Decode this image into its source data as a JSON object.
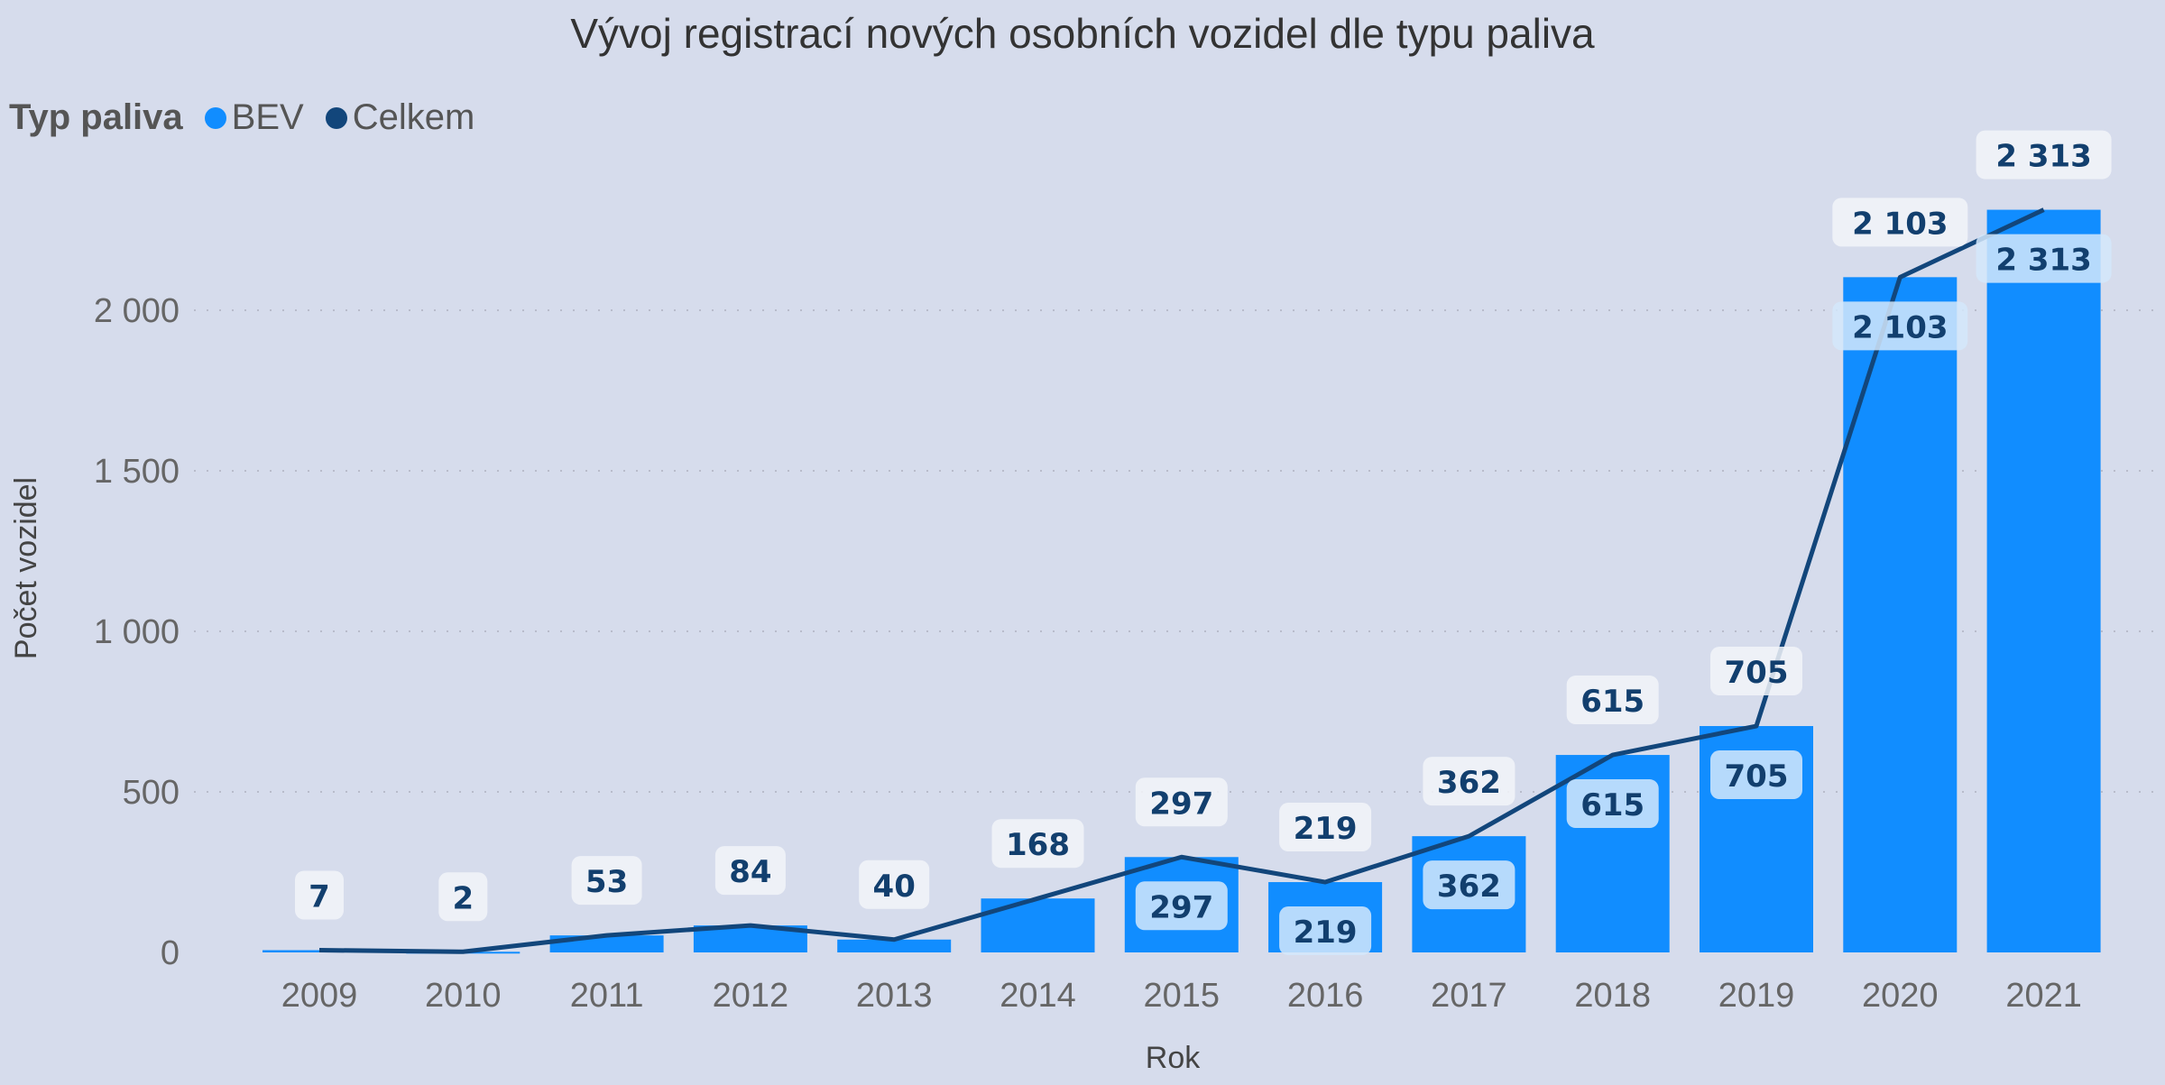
{
  "chart_data": {
    "type": "bar+line",
    "title": "Vývoj registrací nových osobních vozidel dle typu paliva",
    "legend_title": "Typ paliva",
    "legend_position": "top-left",
    "xlabel": "Rok",
    "ylabel": "Počet vozidel",
    "categories": [
      "2009",
      "2010",
      "2011",
      "2012",
      "2013",
      "2014",
      "2015",
      "2016",
      "2017",
      "2018",
      "2019",
      "2020",
      "2021"
    ],
    "series": [
      {
        "name": "BEV",
        "type": "bar",
        "color": "#118dff",
        "values": [
          7,
          2,
          53,
          84,
          40,
          168,
          297,
          219,
          362,
          615,
          705,
          2103,
          2313
        ]
      },
      {
        "name": "Celkem",
        "type": "line",
        "color": "#12467b",
        "values": [
          7,
          2,
          53,
          84,
          40,
          168,
          297,
          219,
          362,
          615,
          705,
          2103,
          2313
        ]
      }
    ],
    "data_labels": [
      "7",
      "2",
      "53",
      "84",
      "40",
      "168",
      "297",
      "219",
      "362",
      "615",
      "705",
      "2 103",
      "2 313"
    ],
    "yticks": [
      0,
      500,
      1000,
      1500,
      2000
    ],
    "ytick_labels": [
      "0",
      "500",
      "1 000",
      "1 500",
      "2 000"
    ],
    "ylim": [
      0,
      2400
    ],
    "grid": true
  }
}
